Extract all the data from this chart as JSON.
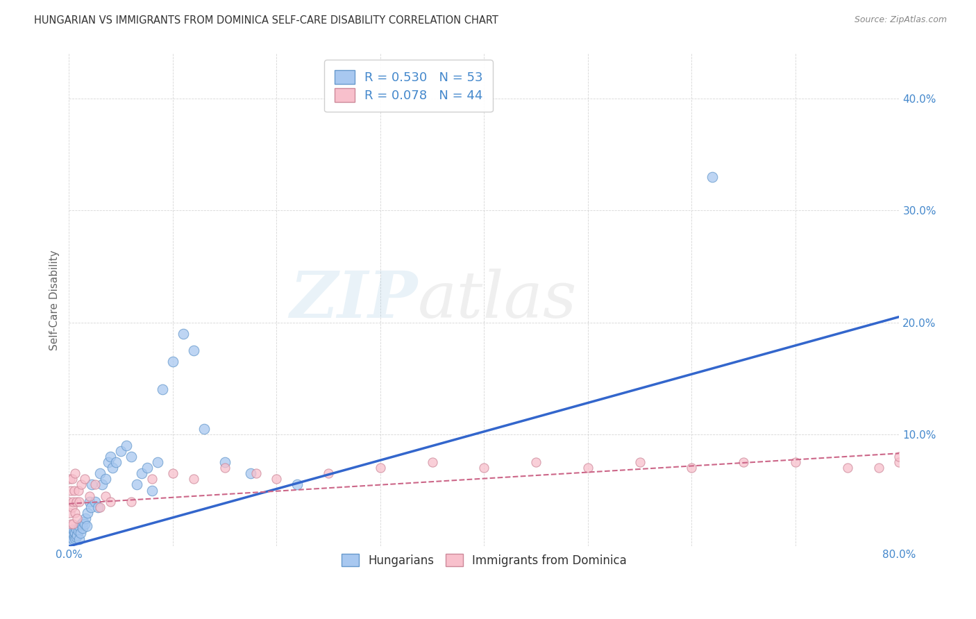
{
  "title": "HUNGARIAN VS IMMIGRANTS FROM DOMINICA SELF-CARE DISABILITY CORRELATION CHART",
  "source": "Source: ZipAtlas.com",
  "ylabel": "Self-Care Disability",
  "xlim": [
    0.0,
    0.8
  ],
  "ylim": [
    0.0,
    0.44
  ],
  "xticks": [
    0.0,
    0.1,
    0.2,
    0.3,
    0.4,
    0.5,
    0.6,
    0.7,
    0.8
  ],
  "yticks": [
    0.0,
    0.1,
    0.2,
    0.3,
    0.4
  ],
  "ytick_labels": [
    "",
    "10.0%",
    "20.0%",
    "30.0%",
    "40.0%"
  ],
  "xtick_labels": [
    "0.0%",
    "",
    "",
    "",
    "",
    "",
    "",
    "",
    "80.0%"
  ],
  "hungarian_R": 0.53,
  "hungarian_N": 53,
  "dominica_R": 0.078,
  "dominica_N": 44,
  "background_color": "#ffffff",
  "grid_color": "#cccccc",
  "blue_color": "#a8c8f0",
  "blue_edge_color": "#6699cc",
  "blue_line_color": "#3366cc",
  "pink_color": "#f8c0cc",
  "pink_edge_color": "#cc8899",
  "pink_line_color": "#cc6688",
  "label_color": "#4488cc",
  "hungarian_x": [
    0.001,
    0.002,
    0.003,
    0.003,
    0.004,
    0.004,
    0.005,
    0.005,
    0.006,
    0.006,
    0.007,
    0.007,
    0.008,
    0.009,
    0.01,
    0.01,
    0.011,
    0.012,
    0.013,
    0.014,
    0.015,
    0.016,
    0.017,
    0.018,
    0.02,
    0.021,
    0.022,
    0.025,
    0.028,
    0.03,
    0.032,
    0.035,
    0.038,
    0.04,
    0.042,
    0.045,
    0.05,
    0.055,
    0.06,
    0.065,
    0.07,
    0.075,
    0.08,
    0.085,
    0.09,
    0.1,
    0.11,
    0.12,
    0.13,
    0.15,
    0.175,
    0.22,
    0.62
  ],
  "hungarian_y": [
    0.005,
    0.008,
    0.01,
    0.012,
    0.006,
    0.015,
    0.009,
    0.013,
    0.007,
    0.012,
    0.008,
    0.015,
    0.01,
    0.014,
    0.006,
    0.018,
    0.012,
    0.02,
    0.016,
    0.022,
    0.02,
    0.025,
    0.018,
    0.03,
    0.04,
    0.035,
    0.055,
    0.04,
    0.035,
    0.065,
    0.055,
    0.06,
    0.075,
    0.08,
    0.07,
    0.075,
    0.085,
    0.09,
    0.08,
    0.055,
    0.065,
    0.07,
    0.05,
    0.075,
    0.14,
    0.165,
    0.19,
    0.175,
    0.105,
    0.075,
    0.065,
    0.055,
    0.33
  ],
  "dominica_x": [
    0.0,
    0.001,
    0.001,
    0.002,
    0.002,
    0.003,
    0.003,
    0.004,
    0.004,
    0.005,
    0.006,
    0.006,
    0.007,
    0.008,
    0.009,
    0.01,
    0.012,
    0.015,
    0.02,
    0.025,
    0.03,
    0.035,
    0.04,
    0.06,
    0.08,
    0.1,
    0.12,
    0.15,
    0.18,
    0.2,
    0.25,
    0.3,
    0.35,
    0.4,
    0.45,
    0.5,
    0.55,
    0.6,
    0.65,
    0.7,
    0.75,
    0.78,
    0.8,
    0.8
  ],
  "dominica_y": [
    0.04,
    0.03,
    0.06,
    0.02,
    0.05,
    0.035,
    0.06,
    0.04,
    0.02,
    0.05,
    0.03,
    0.065,
    0.04,
    0.025,
    0.05,
    0.04,
    0.055,
    0.06,
    0.045,
    0.055,
    0.035,
    0.045,
    0.04,
    0.04,
    0.06,
    0.065,
    0.06,
    0.07,
    0.065,
    0.06,
    0.065,
    0.07,
    0.075,
    0.07,
    0.075,
    0.07,
    0.075,
    0.07,
    0.075,
    0.075,
    0.07,
    0.07,
    0.075,
    0.08
  ],
  "watermark_zip": "ZIP",
  "watermark_atlas": "atlas",
  "legend_labels": [
    "Hungarians",
    "Immigrants from Dominica"
  ]
}
